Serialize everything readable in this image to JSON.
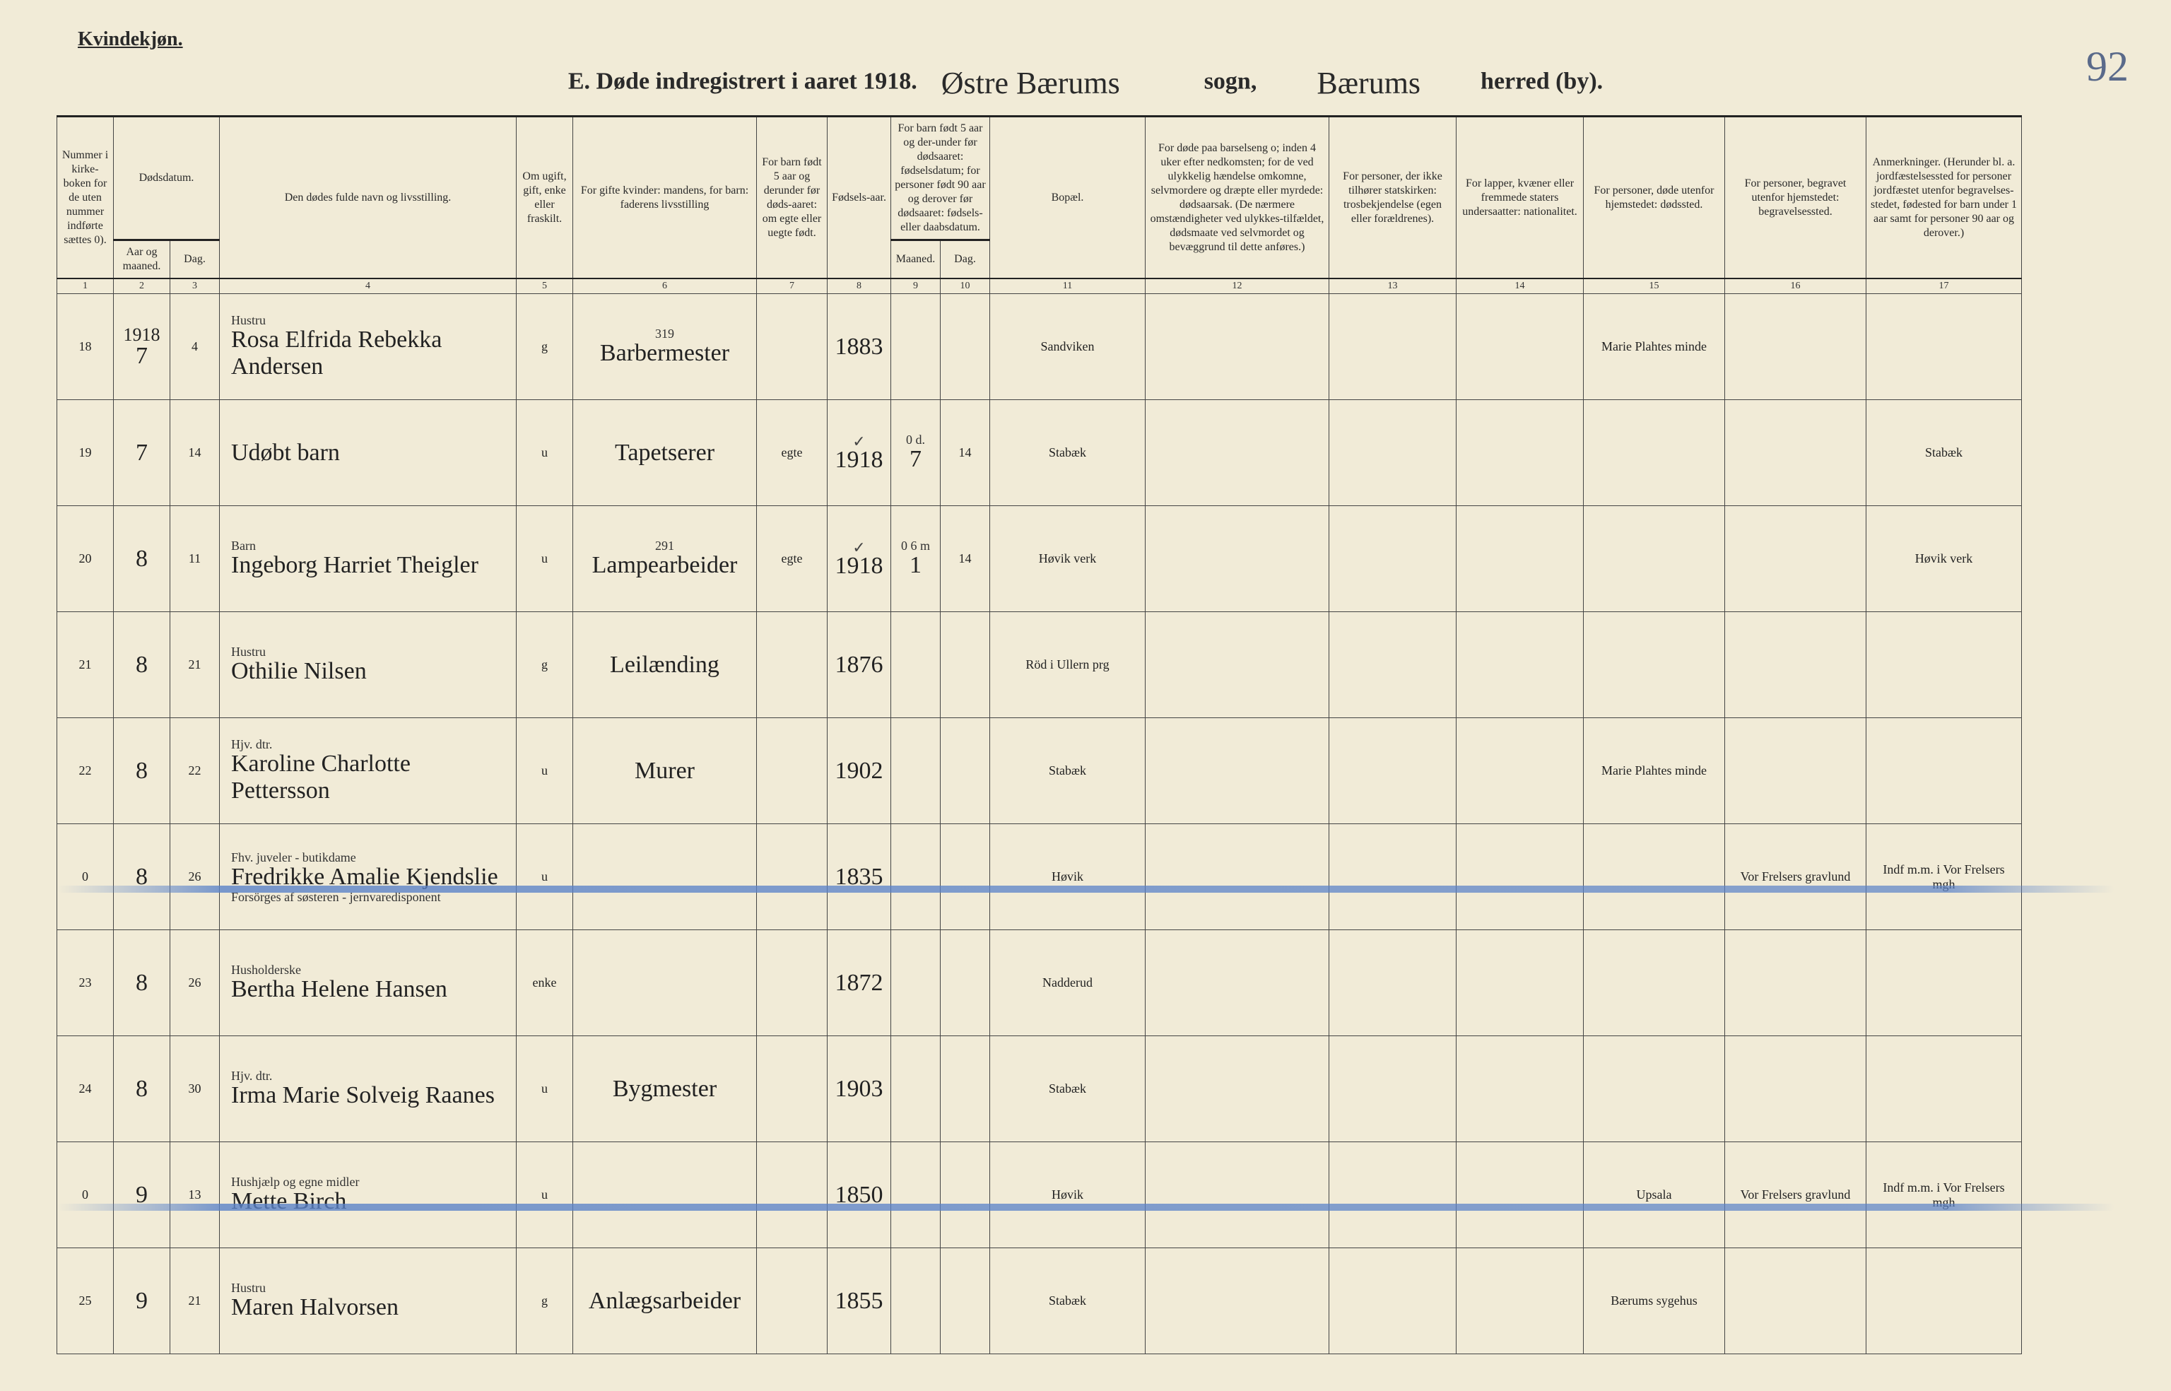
{
  "meta": {
    "gender_heading": "Kvindekjøn.",
    "title_prefix": "E.  Døde indregistrert i aaret 1918.",
    "sogn_script": "Østre Bærums",
    "sogn_label": "sogn,",
    "herred_script": "Bærums",
    "herred_label": "herred (by).",
    "page_number": "92"
  },
  "headers": {
    "c1": "Nummer i kirke-boken for de uten nummer indførte sættes 0).",
    "c2_group": "Dødsdatum.",
    "c2": "Aar og maaned.",
    "c3": "Dag.",
    "c4": "Den dødes fulde navn og livsstilling.",
    "c5": "Om ugift, gift, enke eller fraskilt.",
    "c6": "For gifte kvinder: mandens, for barn: faderens livsstilling",
    "c7": "For barn født 5 aar og derunder før døds-aaret: om egte eller uegte født.",
    "c8": "Fødsels-aar.",
    "c9_10_group": "For barn født 5 aar og der-under før dødsaaret: fødselsdatum; for personer født 90 aar og derover før dødsaaret: fødsels- eller daabsdatum.",
    "c9": "Maaned.",
    "c10": "Dag.",
    "c11": "Bopæl.",
    "c12": "For døde paa barselseng o; inden 4 uker efter nedkomsten; for de ved ulykkelig hændelse omkomne, selvmordere og dræpte eller myrdede: dødsaarsak. (De nærmere omstændigheter ved ulykkes-tilfældet, dødsmaate ved selvmordet og bevæggrund til dette anføres.)",
    "c13": "For personer, der ikke tilhører statskirken: trosbekjendelse (egen eller forældrenes).",
    "c14": "For lapper, kvæner eller fremmede staters undersaatter: nationalitet.",
    "c15": "For personer, døde utenfor hjemstedet: dødssted.",
    "c16": "For personer, begravet utenfor hjemstedet: begravelsessted.",
    "c17": "Anmerkninger. (Herunder bl. a. jordfæstelsessted for personer jordfæstet utenfor begravelses-stedet, fødested for barn under 1 aar samt for personer 90 aar og derover.)"
  },
  "colnums": [
    "1",
    "2",
    "3",
    "4",
    "5",
    "6",
    "7",
    "8",
    "9",
    "10",
    "11",
    "12",
    "13",
    "14",
    "15",
    "16",
    "17"
  ],
  "rows": [
    {
      "num": "18",
      "year_above": "1918",
      "month": "7",
      "day": "4",
      "role": "Hustru",
      "name": "Rosa Elfrida Rebekka Andersen",
      "status": "g",
      "father_note": "319",
      "father": "Barbermester",
      "legit": "",
      "birthyear": "1883",
      "bm": "",
      "bd": "",
      "residence": "Sandviken",
      "c15": "Marie Plahtes minde",
      "c16": "",
      "c17": ""
    },
    {
      "num": "19",
      "month": "7",
      "day": "14",
      "role": "",
      "name": "Udøbt barn",
      "status": "u",
      "father": "Tapetserer",
      "legit": "egte",
      "birthyear": "1918",
      "check8": "✓",
      "bm_note": "0 d.",
      "bm": "7",
      "bd": "14",
      "residence": "Stabæk",
      "c15": "",
      "c16": "",
      "c17": "Stabæk"
    },
    {
      "num": "20",
      "month": "8",
      "day": "11",
      "role": "Barn",
      "name": "Ingeborg Harriet Theigler",
      "status": "u",
      "father_note": "291",
      "father": "Lampearbeider",
      "legit": "egte",
      "birthyear": "1918",
      "check8": "✓",
      "bm_note": "0 6 m",
      "bm": "1",
      "bd": "14",
      "residence": "Høvik verk",
      "c15": "",
      "c16": "",
      "c17": "Høvik verk"
    },
    {
      "num": "21",
      "month": "8",
      "day": "21",
      "role": "Hustru",
      "name": "Othilie Nilsen",
      "status": "g",
      "father": "Leilænding",
      "legit": "",
      "birthyear": "1876",
      "bm": "",
      "bd": "",
      "residence": "Röd i Ullern prg",
      "c15": "",
      "c16": "",
      "c17": ""
    },
    {
      "num": "22",
      "month": "8",
      "day": "22",
      "role": "Hjv. dtr.",
      "name": "Karoline Charlotte Pettersson",
      "status": "u",
      "father": "Murer",
      "legit": "",
      "birthyear": "1902",
      "bm": "",
      "bd": "",
      "residence": "Stabæk",
      "c15": "Marie Plahtes minde",
      "c16": "",
      "c17": ""
    },
    {
      "struck": true,
      "num": "0",
      "month": "8",
      "day": "26",
      "role": "Fhv. juveler - butikdame",
      "name": "Fredrikke Amalie Kjendslie",
      "sub": "Forsörges af søsteren - jernvaredisponent",
      "status": "u",
      "father": "",
      "legit": "",
      "birthyear": "1835",
      "bm": "",
      "bd": "",
      "residence": "Høvik",
      "c15": "",
      "c16": "Vor Frelsers gravlund",
      "c17": "Indf m.m. i Vor Frelsers mgh"
    },
    {
      "num": "23",
      "month": "8",
      "day": "26",
      "role": "Husholderske",
      "name": "Bertha Helene Hansen",
      "status": "enke",
      "father": "",
      "legit": "",
      "birthyear": "1872",
      "bm": "",
      "bd": "",
      "residence": "Nadderud",
      "c15": "",
      "c16": "",
      "c17": ""
    },
    {
      "num": "24",
      "month": "8",
      "day": "30",
      "role": "Hjv. dtr.",
      "name": "Irma Marie Solveig Raanes",
      "status": "u",
      "father": "Bygmester",
      "legit": "",
      "birthyear": "1903",
      "bm": "",
      "bd": "",
      "residence": "Stabæk",
      "c15": "",
      "c16": "",
      "c17": ""
    },
    {
      "struck": true,
      "num": "0",
      "month": "9",
      "day": "13",
      "role": "Hushjælp    og   egne  midler",
      "name": "Mette Birch",
      "status": "u",
      "father": "",
      "legit": "",
      "birthyear": "1850",
      "bm": "",
      "bd": "",
      "residence": "Høvik",
      "c15": "Upsala",
      "c16": "Vor Frelsers gravlund",
      "c17": "Indf m.m. i Vor Frelsers mgh"
    },
    {
      "num": "25",
      "month": "9",
      "day": "21",
      "role": "Hustru",
      "name": "Maren Halvorsen",
      "status": "g",
      "father": "Anlægsarbeider",
      "legit": "",
      "birthyear": "1855",
      "bm": "",
      "bd": "",
      "residence": "Stabæk",
      "c15": "Bærums sygehus",
      "c16": "",
      "c17": ""
    }
  ]
}
